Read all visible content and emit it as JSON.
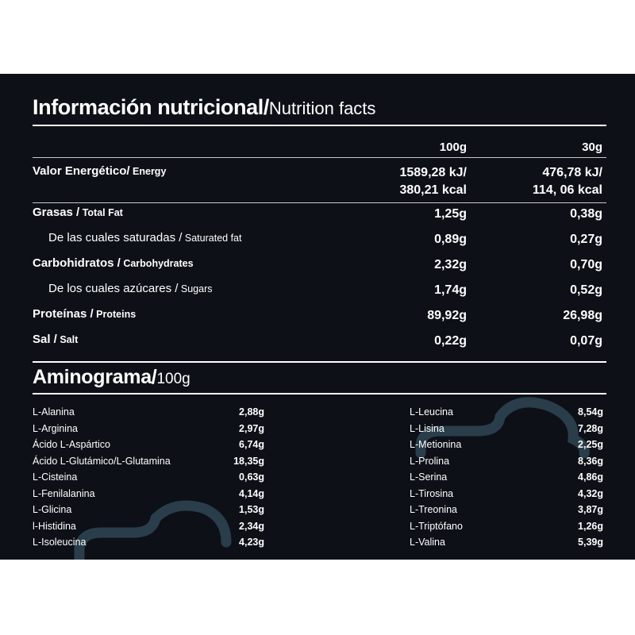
{
  "nutrition": {
    "title_bold": "Información nutricional/",
    "title_light": "Nutrition facts",
    "col_100": "100g",
    "col_30": "30g",
    "rows": [
      {
        "es": "Valor Energético/",
        "en": " Energy",
        "v100": "1589,28 kJ/",
        "v100b": "380,21 kcal",
        "v30": "476,78 kJ/",
        "v30b": "114, 06 kcal"
      },
      {
        "es": "Grasas /",
        "en": " Total Fat",
        "v100": "1,25g",
        "v30": "0,38g"
      },
      {
        "es": "De las cuales saturadas /",
        "en": " Saturated fat",
        "v100": "0,89g",
        "v30": "0,27g"
      },
      {
        "es": "Carbohidratos /",
        "en": " Carbohydrates",
        "v100": "2,32g",
        "v30": "0,70g"
      },
      {
        "es": "De los cuales azúcares /",
        "en": " Sugars",
        "v100": "1,74g",
        "v30": "0,52g"
      },
      {
        "es": "Proteínas /",
        "en": " Proteins",
        "v100": "89,92g",
        "v30": "26,98g"
      },
      {
        "es": "Sal /",
        "en": " Salt",
        "v100": "0,22g",
        "v30": "0,07g"
      }
    ]
  },
  "aminogram": {
    "title_bold": "Aminograma/",
    "title_light": "100g",
    "left": [
      {
        "name": "L-Alanina",
        "value": "2,88g"
      },
      {
        "name": "L-Arginina",
        "value": "2,97g"
      },
      {
        "name": "Ácido L-Aspártico",
        "value": "6,74g"
      },
      {
        "name": "Ácido L-Glutámico/L-Glutamina",
        "value": "18,35g"
      },
      {
        "name": "L-Cisteina",
        "value": "0,63g"
      },
      {
        "name": "L-Fenilalanina",
        "value": "4,14g"
      },
      {
        "name": "L-Glicina",
        "value": "1,53g"
      },
      {
        "name": "l-Histidina",
        "value": "2,34g"
      },
      {
        "name": "L-Isoleucina",
        "value": "4,23g"
      }
    ],
    "right": [
      {
        "name": "L-Leucina",
        "value": "8,54g"
      },
      {
        "name": "L-Lisina",
        "value": "7,28g"
      },
      {
        "name": "L-Metionina",
        "value": "2,25g"
      },
      {
        "name": "L-Prolina",
        "value": "8,36g"
      },
      {
        "name": "L-Serina",
        "value": "4,86g"
      },
      {
        "name": "L-Tirosina",
        "value": "4,32g"
      },
      {
        "name": "L-Treonina",
        "value": "3,87g"
      },
      {
        "name": "L-Triptófano",
        "value": "1,26g"
      },
      {
        "name": "L-Valina",
        "value": "5,39g"
      }
    ]
  },
  "colors": {
    "panel_bg": "#0d1017",
    "text": "#ffffff",
    "decoration": "#2a3d4a"
  }
}
